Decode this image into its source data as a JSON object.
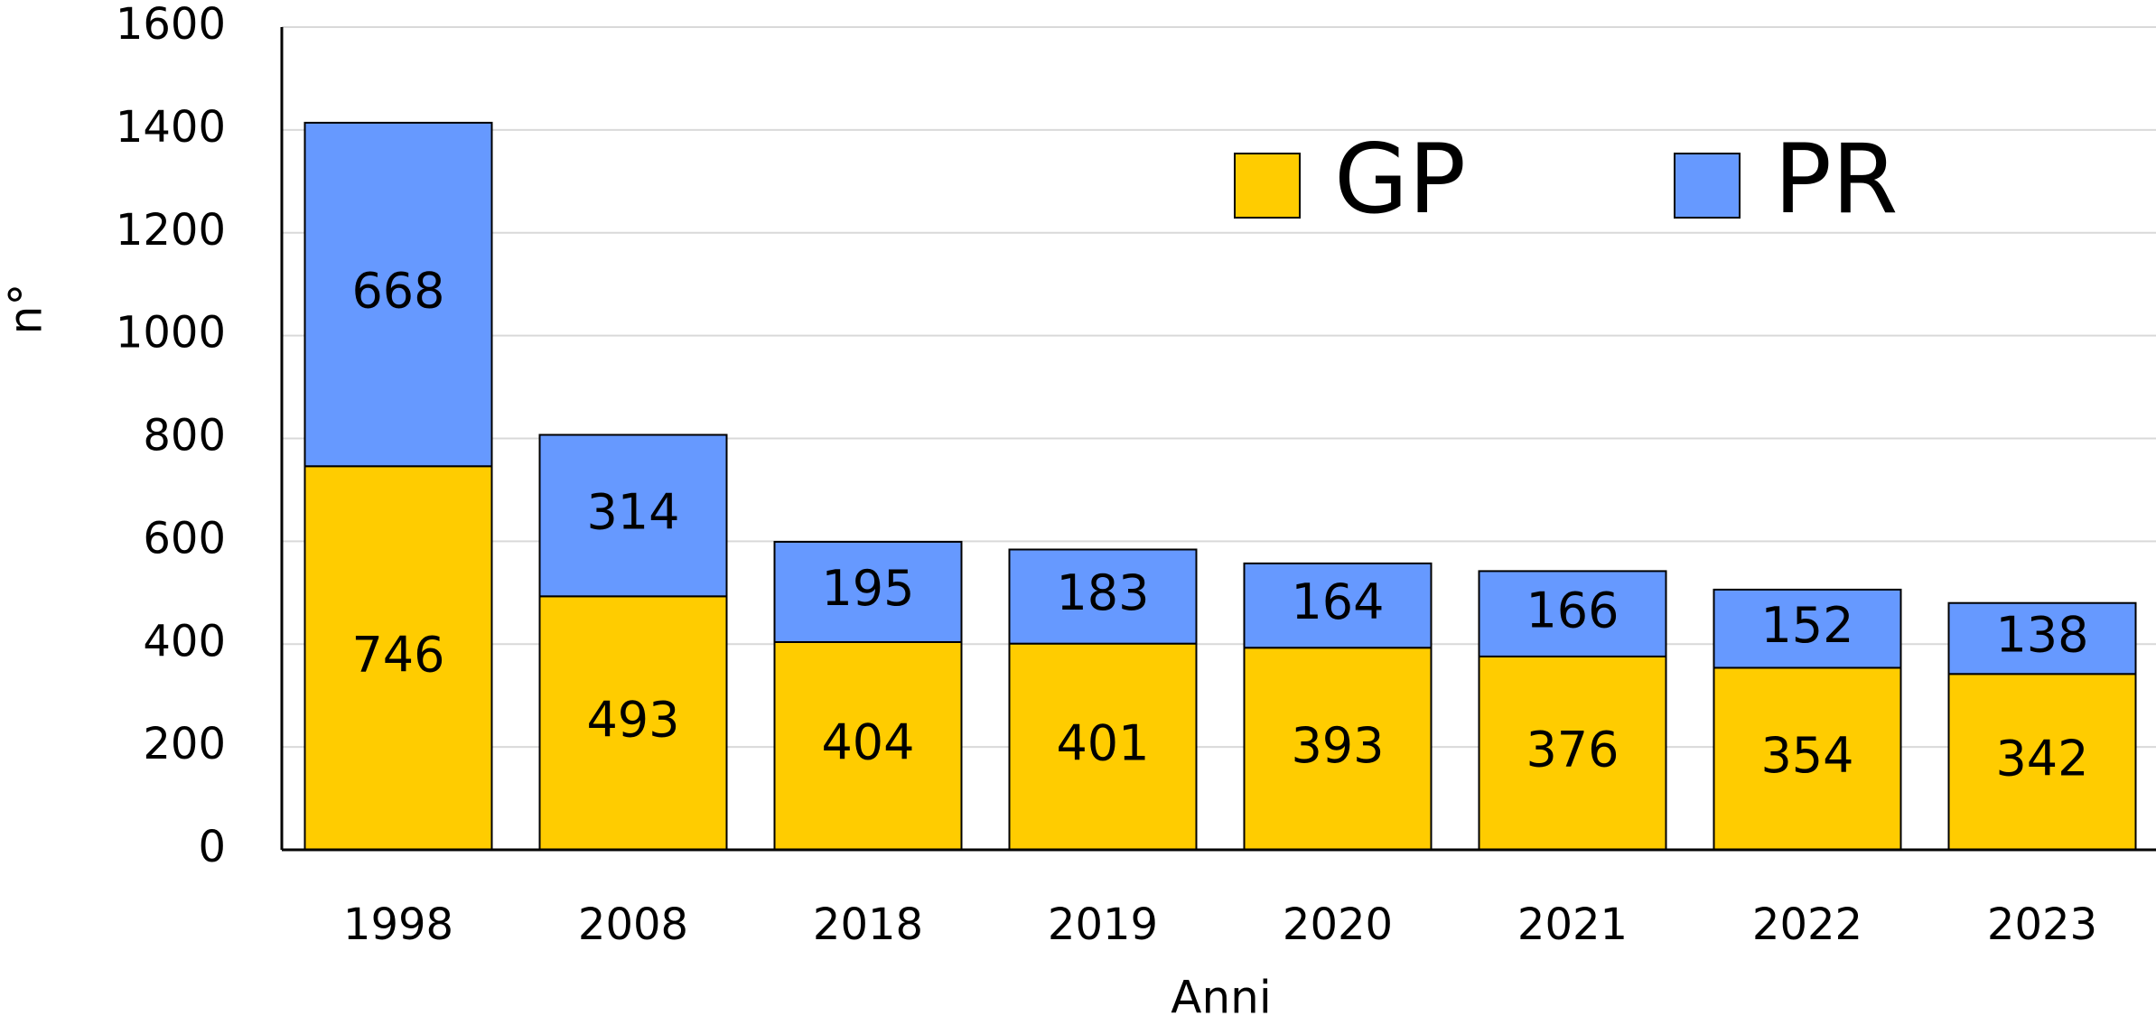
{
  "chart_data": {
    "type": "stacked-bar",
    "x_label": "Anni",
    "y_label": "n°",
    "categories": [
      "1998",
      "2008",
      "2018",
      "2019",
      "2020",
      "2021",
      "2022",
      "2023"
    ],
    "series": [
      {
        "name": "GP",
        "color": "#ffcc00",
        "values": [
          746,
          493,
          404,
          401,
          393,
          376,
          354,
          342
        ]
      },
      {
        "name": "PR",
        "color": "#6699ff",
        "values": [
          668,
          314,
          195,
          183,
          164,
          166,
          152,
          138
        ]
      }
    ],
    "ylim": [
      0,
      1600
    ],
    "yticks": [
      0,
      200,
      400,
      600,
      800,
      1000,
      1200,
      1400,
      1600
    ],
    "grid": true,
    "legend": "top"
  }
}
